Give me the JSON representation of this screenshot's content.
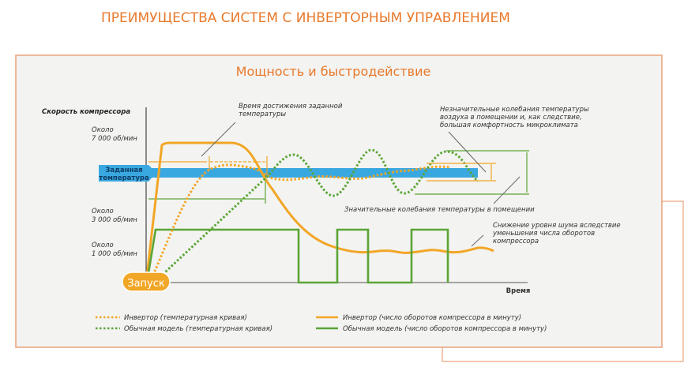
{
  "title": "ПРЕИМУЩЕСТВА СИСТЕМ С ИНВЕРТОРНЫМ УПРАВЛЕНИЕМ",
  "subtitle": "Мощность и быстродействие",
  "colors": {
    "orange": "#f2a626",
    "green": "#5aa536",
    "blue": "#3aa8e0",
    "title": "#e8792b",
    "frame": "#e9a27a"
  },
  "axes": {
    "y_label": "Скорость компрессора",
    "x_label": "Время",
    "ticks": [
      {
        "line1": "Около",
        "line2": "7 000 об/мин"
      },
      {
        "line1": "Около",
        "line2": "3 000 об/мин"
      },
      {
        "line1": "Около",
        "line2": "1 000 об/мин"
      }
    ],
    "start_label": "Запуск",
    "setpoint_label_1": "Заданная",
    "setpoint_label_2": "температура"
  },
  "annotations": {
    "time_to_setpoint_1": "Время достижения заданной",
    "time_to_setpoint_2": "температуры",
    "small_fluct_1": "Незначительные колебания температуры",
    "small_fluct_2": "воздуха в помещении и, как следствие,",
    "small_fluct_3": "большая комфортность микроклимата",
    "large_fluct": "Значительные колебания температуры в помещении",
    "noise_1": "Снижение уровня шума вследствие",
    "noise_2": "уменьшения числа оборотов",
    "noise_3": "компрессора"
  },
  "legend": [
    {
      "label": "Инвертор (температурная кривая)",
      "style": "dotted",
      "color": "#f2a626"
    },
    {
      "label": "Обычная модель (температурная кривая)",
      "style": "dotted",
      "color": "#5aa536"
    },
    {
      "label": "Инвертор (число оборотов компрессора в минуту)",
      "style": "solid",
      "color": "#f2a626"
    },
    {
      "label": "Обычная модель (число оборотов компрессора в минуту)",
      "style": "solid",
      "color": "#5aa536"
    }
  ]
}
